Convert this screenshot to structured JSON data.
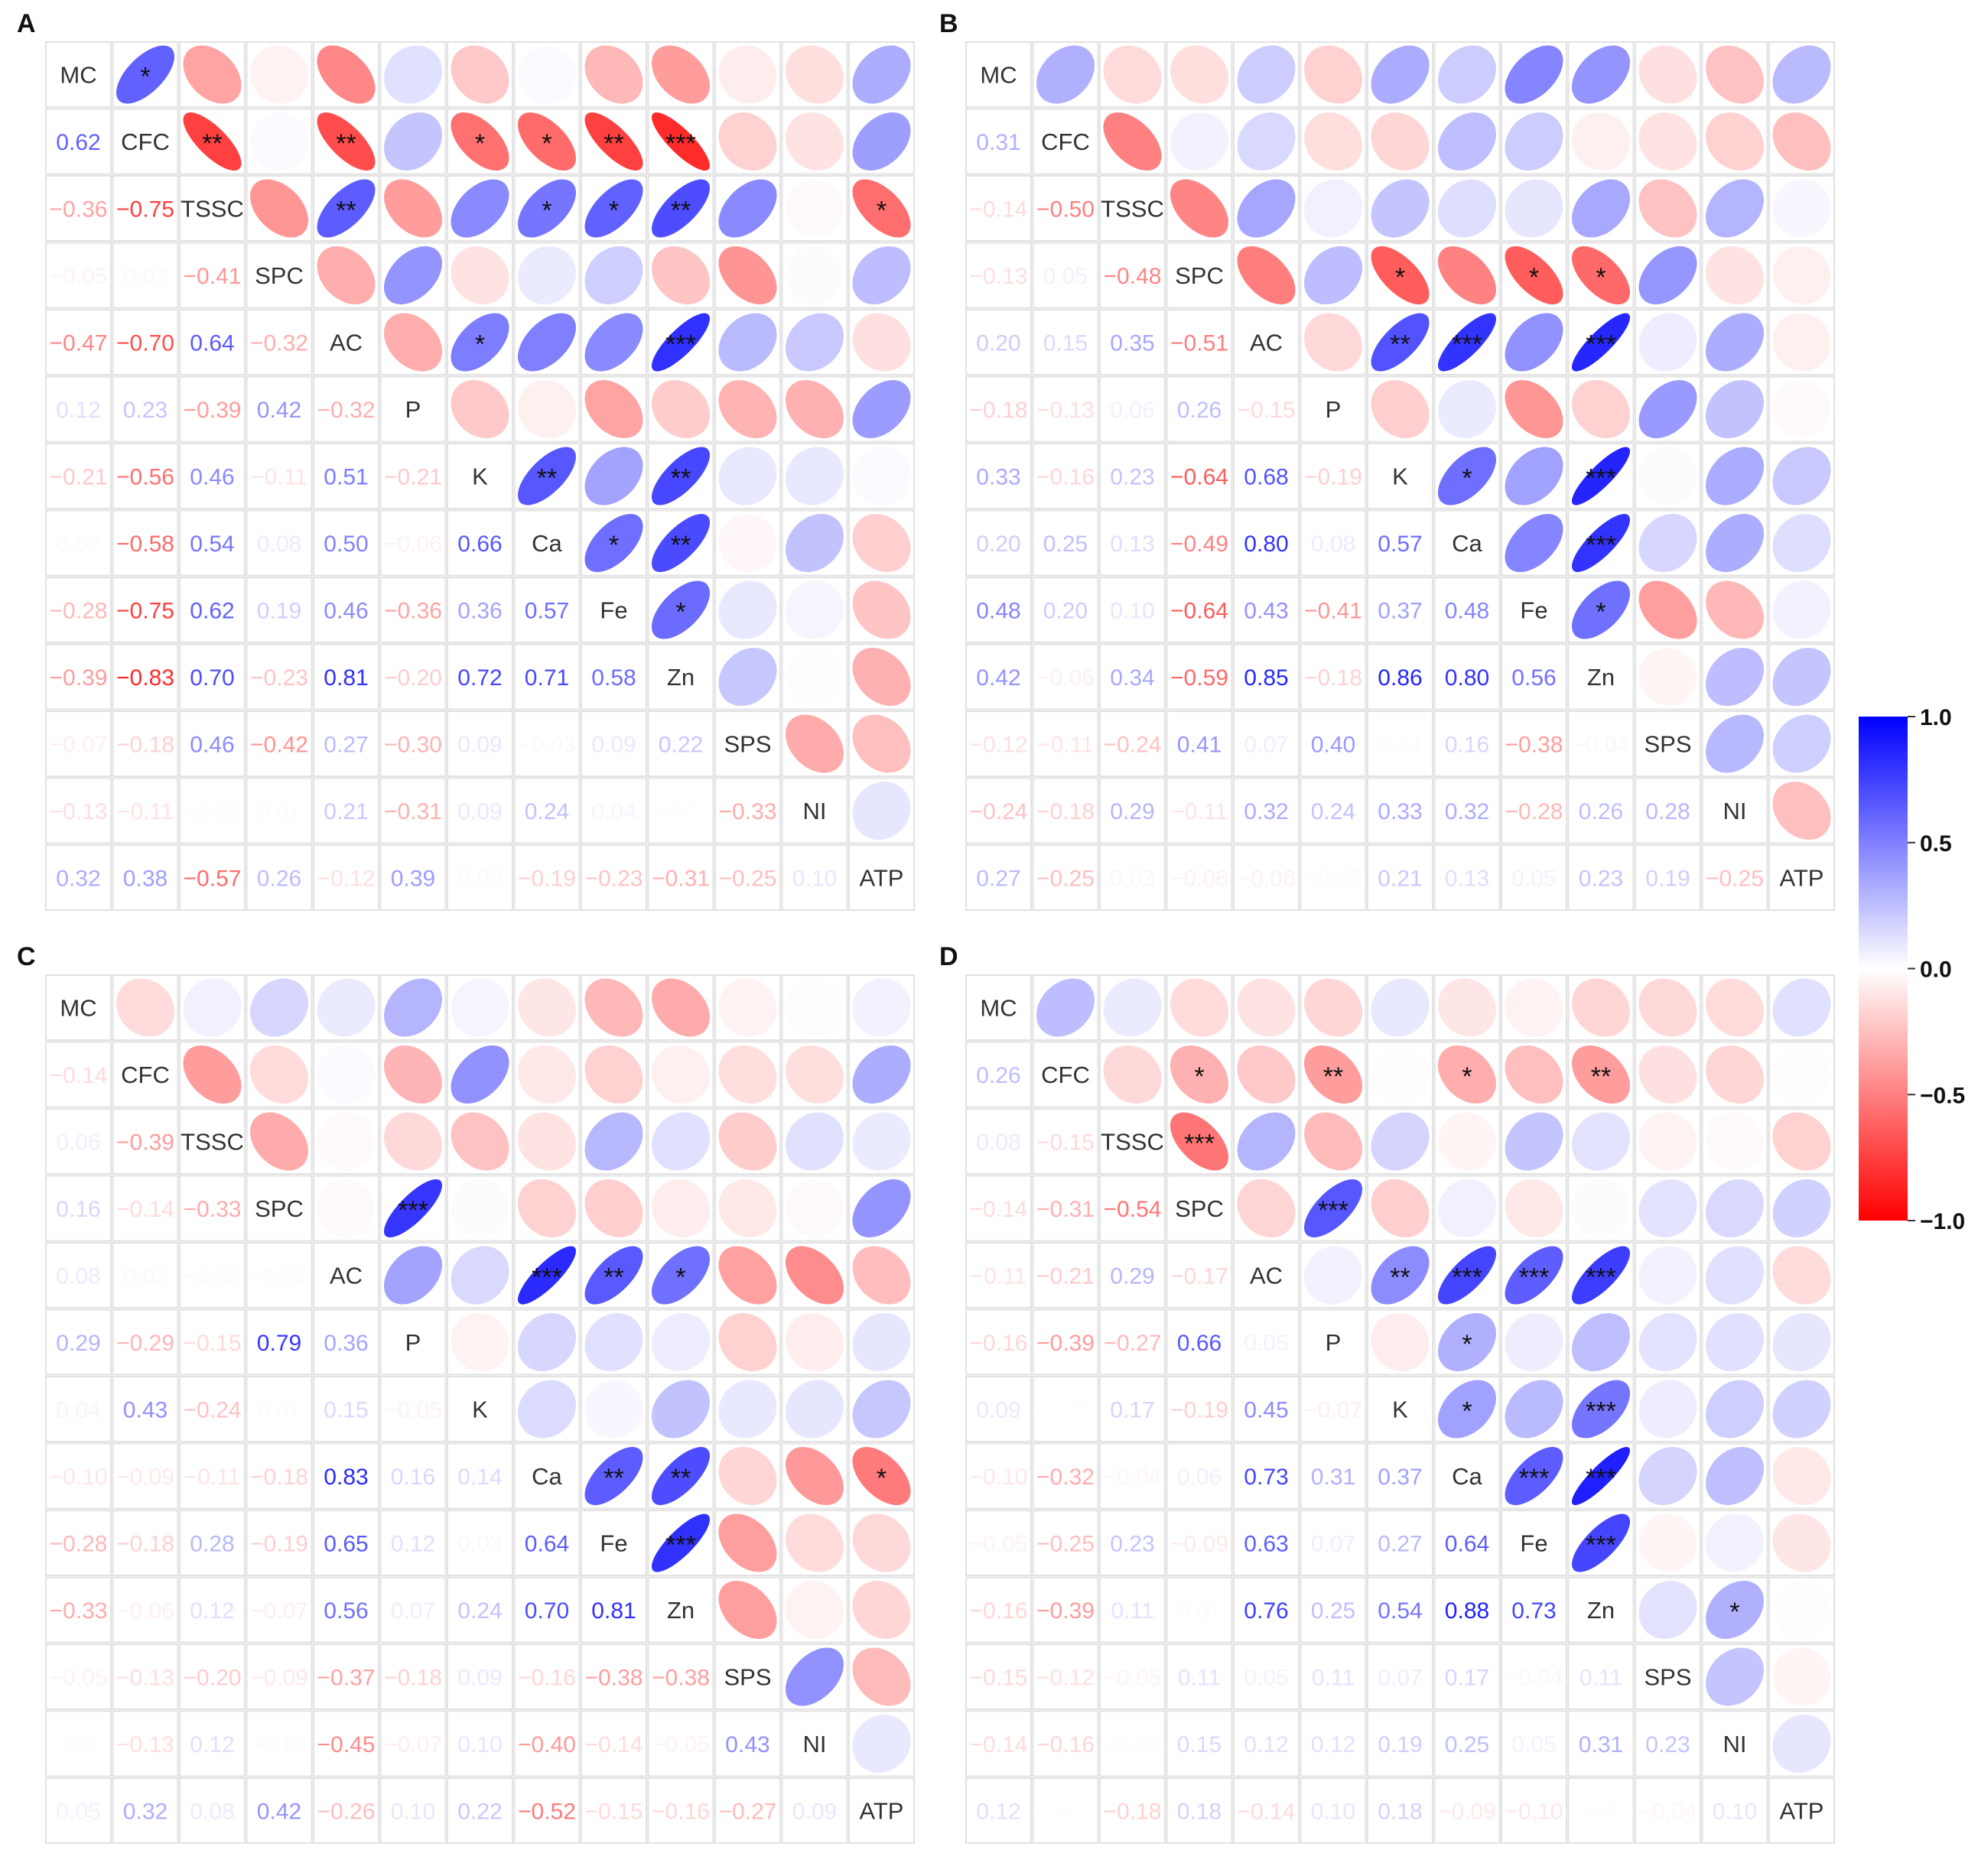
{
  "chart_data": {
    "type": "heatmap",
    "subtype": "correlogram (upper: ellipses + significance stars, lower: coefficients)",
    "variables": [
      "MC",
      "CFC",
      "TSSC",
      "SPC",
      "AC",
      "P",
      "K",
      "Ca",
      "Fe",
      "Zn",
      "SPS",
      "NI",
      "ATP"
    ],
    "colorbar": {
      "min": -1.0,
      "max": 1.0,
      "ticks": [
        "1.0",
        "0.5",
        "0.0",
        "−0.5",
        "−1.0"
      ]
    },
    "panels": [
      {
        "label": "A",
        "lower": [
          [
            null,
            null,
            null,
            null,
            null,
            null,
            null,
            null,
            null,
            null,
            null,
            null,
            null
          ],
          [
            0.62,
            null,
            null,
            null,
            null,
            null,
            null,
            null,
            null,
            null,
            null,
            null,
            null
          ],
          [
            -0.36,
            -0.75,
            null,
            null,
            null,
            null,
            null,
            null,
            null,
            null,
            null,
            null,
            null
          ],
          [
            -0.05,
            0.02,
            -0.41,
            null,
            null,
            null,
            null,
            null,
            null,
            null,
            null,
            null,
            null
          ],
          [
            -0.47,
            -0.7,
            0.64,
            -0.32,
            null,
            null,
            null,
            null,
            null,
            null,
            null,
            null,
            null
          ],
          [
            0.12,
            0.23,
            -0.39,
            0.42,
            -0.32,
            null,
            null,
            null,
            null,
            null,
            null,
            null,
            null
          ],
          [
            -0.21,
            -0.56,
            0.46,
            -0.11,
            0.51,
            -0.21,
            null,
            null,
            null,
            null,
            null,
            null,
            null
          ],
          [
            0.02,
            -0.58,
            0.54,
            0.08,
            0.5,
            -0.06,
            0.66,
            null,
            null,
            null,
            null,
            null,
            null
          ],
          [
            -0.28,
            -0.75,
            0.62,
            0.19,
            0.46,
            -0.36,
            0.36,
            0.57,
            null,
            null,
            null,
            null,
            null
          ],
          [
            -0.39,
            -0.83,
            0.7,
            -0.23,
            0.81,
            -0.2,
            0.72,
            0.71,
            0.58,
            null,
            null,
            null,
            null
          ],
          [
            -0.07,
            -0.18,
            0.46,
            -0.42,
            0.27,
            -0.3,
            0.09,
            -0.03,
            0.09,
            0.22,
            null,
            null,
            null
          ],
          [
            -0.13,
            -0.11,
            -0.02,
            0.01,
            0.21,
            -0.31,
            0.09,
            0.24,
            0.04,
            -0.01,
            -0.33,
            null,
            null
          ],
          [
            0.32,
            0.38,
            -0.57,
            0.26,
            -0.12,
            0.39,
            0.02,
            -0.19,
            -0.23,
            -0.31,
            -0.25,
            0.1,
            null
          ]
        ],
        "stars": {
          "0-1": "*",
          "1-2": "**",
          "1-4": "**",
          "1-6": "*",
          "1-7": "*",
          "1-8": "**",
          "1-9": "***",
          "2-4": "**",
          "2-7": "*",
          "2-8": "*",
          "2-9": "**",
          "2-12": "*",
          "4-6": "*",
          "4-9": "***",
          "6-7": "**",
          "6-9": "**",
          "7-8": "*",
          "7-9": "**",
          "8-9": "*"
        }
      },
      {
        "label": "B",
        "lower": [
          [
            null,
            null,
            null,
            null,
            null,
            null,
            null,
            null,
            null,
            null,
            null,
            null,
            null
          ],
          [
            0.31,
            null,
            null,
            null,
            null,
            null,
            null,
            null,
            null,
            null,
            null,
            null,
            null
          ],
          [
            -0.14,
            -0.5,
            null,
            null,
            null,
            null,
            null,
            null,
            null,
            null,
            null,
            null,
            null
          ],
          [
            -0.13,
            0.05,
            -0.48,
            null,
            null,
            null,
            null,
            null,
            null,
            null,
            null,
            null,
            null
          ],
          [
            0.2,
            0.15,
            0.35,
            -0.51,
            null,
            null,
            null,
            null,
            null,
            null,
            null,
            null,
            null
          ],
          [
            -0.18,
            -0.13,
            0.06,
            0.26,
            -0.15,
            null,
            null,
            null,
            null,
            null,
            null,
            null,
            null
          ],
          [
            0.33,
            -0.16,
            0.23,
            -0.64,
            0.68,
            -0.19,
            null,
            null,
            null,
            null,
            null,
            null,
            null
          ],
          [
            0.2,
            0.25,
            0.13,
            -0.49,
            0.8,
            0.08,
            0.57,
            null,
            null,
            null,
            null,
            null,
            null
          ],
          [
            0.48,
            0.2,
            0.1,
            -0.64,
            0.43,
            -0.41,
            0.37,
            0.48,
            null,
            null,
            null,
            null,
            null
          ],
          [
            0.42,
            -0.06,
            0.34,
            -0.59,
            0.85,
            -0.18,
            0.86,
            0.8,
            0.56,
            null,
            null,
            null,
            null
          ],
          [
            -0.12,
            -0.11,
            -0.24,
            0.41,
            0.07,
            0.4,
            0.01,
            0.16,
            -0.38,
            -0.04,
            null,
            null,
            null
          ],
          [
            -0.24,
            -0.18,
            0.29,
            -0.11,
            0.32,
            0.24,
            0.33,
            0.32,
            -0.28,
            0.26,
            0.28,
            null,
            null
          ],
          [
            0.27,
            -0.25,
            0.03,
            -0.06,
            -0.06,
            -0.02,
            0.21,
            0.13,
            0.05,
            0.23,
            0.19,
            -0.25,
            null
          ]
        ],
        "stars": {
          "3-6": "*",
          "3-8": "*",
          "3-9": "*",
          "4-6": "**",
          "4-7": "***",
          "4-9": "***",
          "6-7": "*",
          "6-9": "***",
          "7-9": "***",
          "8-9": "*"
        }
      },
      {
        "label": "C",
        "lower": [
          [
            null,
            null,
            null,
            null,
            null,
            null,
            null,
            null,
            null,
            null,
            null,
            null,
            null
          ],
          [
            -0.14,
            null,
            null,
            null,
            null,
            null,
            null,
            null,
            null,
            null,
            null,
            null,
            null
          ],
          [
            0.06,
            -0.39,
            null,
            null,
            null,
            null,
            null,
            null,
            null,
            null,
            null,
            null,
            null
          ],
          [
            0.16,
            -0.14,
            -0.33,
            null,
            null,
            null,
            null,
            null,
            null,
            null,
            null,
            null,
            null
          ],
          [
            0.08,
            0.02,
            -0.02,
            -0.02,
            null,
            null,
            null,
            null,
            null,
            null,
            null,
            null,
            null
          ],
          [
            0.29,
            -0.29,
            -0.15,
            0.79,
            0.36,
            null,
            null,
            null,
            null,
            null,
            null,
            null,
            null
          ],
          [
            0.04,
            0.43,
            -0.24,
            0.01,
            0.15,
            -0.05,
            null,
            null,
            null,
            null,
            null,
            null,
            null
          ],
          [
            -0.1,
            -0.09,
            -0.11,
            -0.18,
            0.83,
            0.16,
            0.14,
            null,
            null,
            null,
            null,
            null,
            null
          ],
          [
            -0.28,
            -0.18,
            0.28,
            -0.19,
            0.65,
            0.12,
            0.03,
            0.64,
            null,
            null,
            null,
            null,
            null
          ],
          [
            -0.33,
            -0.06,
            0.12,
            -0.07,
            0.56,
            0.07,
            0.24,
            0.7,
            0.81,
            null,
            null,
            null,
            null
          ],
          [
            -0.05,
            -0.13,
            -0.2,
            -0.09,
            -0.37,
            -0.18,
            0.09,
            -0.16,
            -0.38,
            -0.38,
            null,
            null,
            null
          ],
          [
            -0.01,
            -0.13,
            0.12,
            -0.02,
            -0.45,
            -0.07,
            0.1,
            -0.4,
            -0.14,
            -0.05,
            0.43,
            null,
            null
          ],
          [
            0.05,
            0.32,
            0.08,
            0.42,
            -0.26,
            0.1,
            0.22,
            -0.52,
            -0.15,
            -0.16,
            -0.27,
            0.09,
            null
          ]
        ],
        "stars": {
          "3-5": "***",
          "4-7": "***",
          "4-8": "**",
          "4-9": "*",
          "7-8": "**",
          "7-9": "**",
          "7-12": "*",
          "8-9": "***"
        }
      },
      {
        "label": "D",
        "lower": [
          [
            null,
            null,
            null,
            null,
            null,
            null,
            null,
            null,
            null,
            null,
            null,
            null,
            null
          ],
          [
            0.26,
            null,
            null,
            null,
            null,
            null,
            null,
            null,
            null,
            null,
            null,
            null,
            null
          ],
          [
            0.08,
            -0.15,
            null,
            null,
            null,
            null,
            null,
            null,
            null,
            null,
            null,
            null,
            null
          ],
          [
            -0.14,
            -0.31,
            -0.54,
            null,
            null,
            null,
            null,
            null,
            null,
            null,
            null,
            null,
            null
          ],
          [
            -0.11,
            -0.21,
            0.29,
            -0.17,
            null,
            null,
            null,
            null,
            null,
            null,
            null,
            null,
            null
          ],
          [
            -0.16,
            -0.39,
            -0.27,
            0.66,
            0.05,
            null,
            null,
            null,
            null,
            null,
            null,
            null,
            null
          ],
          [
            0.09,
            -0.01,
            0.17,
            -0.19,
            0.45,
            -0.07,
            null,
            null,
            null,
            null,
            null,
            null,
            null
          ],
          [
            -0.1,
            -0.32,
            -0.04,
            0.06,
            0.73,
            0.31,
            0.37,
            null,
            null,
            null,
            null,
            null,
            null
          ],
          [
            -0.05,
            -0.25,
            0.23,
            -0.09,
            0.63,
            0.07,
            0.27,
            0.64,
            null,
            null,
            null,
            null,
            null
          ],
          [
            -0.16,
            -0.39,
            0.11,
            0.01,
            0.76,
            0.25,
            0.54,
            0.88,
            0.73,
            null,
            null,
            null,
            null
          ],
          [
            -0.15,
            -0.12,
            -0.05,
            0.11,
            0.05,
            0.11,
            0.07,
            0.17,
            -0.04,
            0.11,
            null,
            null,
            null
          ],
          [
            -0.14,
            -0.16,
            -0.02,
            0.15,
            0.12,
            0.12,
            0.19,
            0.25,
            0.05,
            0.31,
            0.23,
            null,
            null
          ],
          [
            0.12,
            -0.01,
            -0.18,
            0.18,
            -0.14,
            0.1,
            0.18,
            -0.09,
            -0.1,
            -0.01,
            -0.04,
            0.1,
            null
          ]
        ],
        "stars": {
          "1-3": "*",
          "1-5": "**",
          "1-7": "*",
          "1-9": "**",
          "2-3": "***",
          "3-5": "***",
          "4-6": "**",
          "4-7": "***",
          "4-8": "***",
          "4-9": "***",
          "5-7": "*",
          "6-7": "*",
          "6-9": "***",
          "7-8": "***",
          "7-9": "***",
          "8-9": "***",
          "9-11": "*"
        }
      }
    ]
  }
}
